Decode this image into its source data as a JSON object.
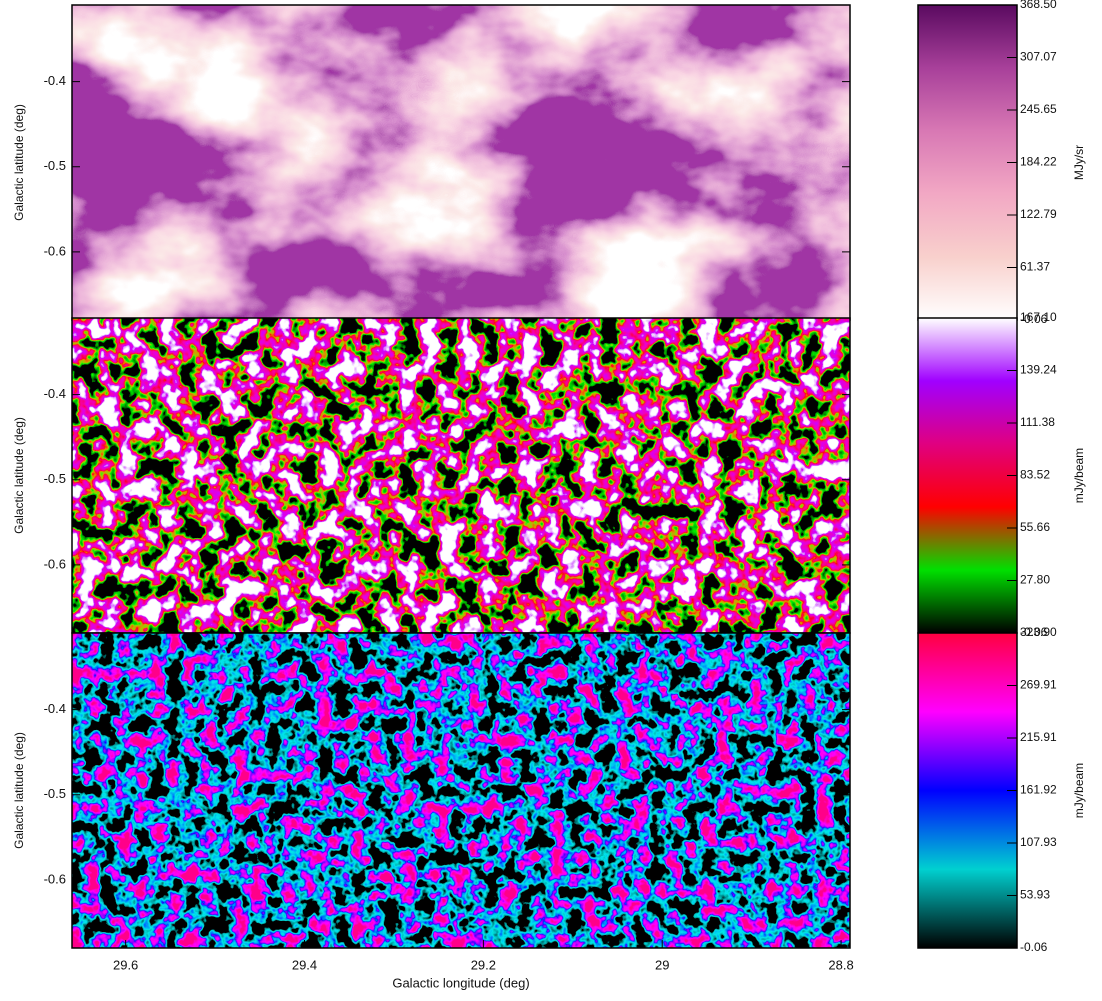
{
  "chart_data": [
    {
      "type": "image",
      "ylabel": "Galactic latitude (deg)",
      "ylim": [
        -0.68,
        -0.31
      ],
      "yticks": [
        -0.4,
        -0.5,
        -0.6
      ],
      "colorbar": {
        "label": "MJy/sr",
        "lim": [
          -0.06,
          368.5
        ],
        "ticks": [
          {
            "value": 368.5,
            "label": "368.50"
          },
          307.07,
          245.65,
          184.22,
          122.79,
          61.37,
          -0.06
        ],
        "colormap": [
          "#ffffff",
          "#f8d0cc",
          "#f2a8c4",
          "#d878b4",
          "#a8409a",
          "#5a0a60"
        ]
      }
    },
    {
      "type": "image",
      "ylabel": "Galactic latitude (deg)",
      "ylim": [
        -0.68,
        -0.31
      ],
      "yticks": [
        -0.4,
        -0.5,
        -0.6
      ],
      "colorbar": {
        "label": "mJy/beam",
        "lim": [
          -0.06,
          167.1
        ],
        "ticks": [
          {
            "value": 167.1,
            "label": "167.10"
          },
          139.24,
          111.38,
          83.52,
          55.66,
          {
            "value": 27.8,
            "label": "27.80"
          },
          -0.06
        ],
        "colormap": [
          "#000000",
          "#00e000",
          "#ff0000",
          "#e00080",
          "#a000ff",
          "#ffffff"
        ]
      }
    },
    {
      "type": "image",
      "ylabel": "Galactic latitude (deg)",
      "ylim": [
        -0.68,
        -0.31
      ],
      "yticks": [
        -0.4,
        -0.5,
        -0.6
      ],
      "xlabel": "Galactic longitude (deg)",
      "xlim": [
        29.66,
        28.79
      ],
      "xticks": [
        29.6,
        29.4,
        29.2,
        29.0,
        28.8
      ],
      "colorbar": {
        "label": "mJy/beam",
        "lim": [
          -0.06,
          323.9
        ],
        "ticks": [
          {
            "value": 323.9,
            "label": "323.90"
          },
          269.91,
          215.91,
          161.92,
          107.93,
          53.93,
          -0.06
        ],
        "colormap": [
          "#000000",
          "#00d0d0",
          "#0000ff",
          "#ff00ff",
          "#ff0040"
        ]
      }
    }
  ]
}
